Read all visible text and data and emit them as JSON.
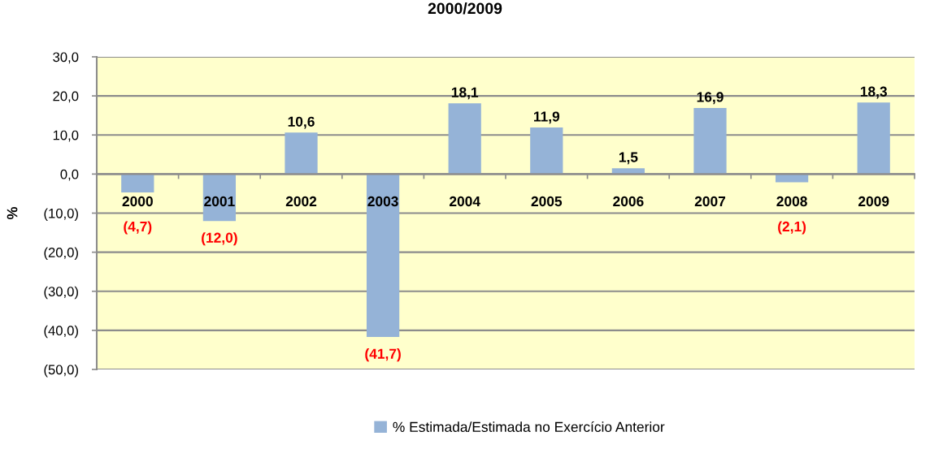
{
  "chart_data": {
    "type": "bar",
    "title": "2000/2009",
    "ylabel": "%",
    "categories": [
      "2000",
      "2001",
      "2002",
      "2003",
      "2004",
      "2005",
      "2006",
      "2007",
      "2008",
      "2009"
    ],
    "series": [
      {
        "name": "% Estimada/Estimada no Exercício Anterior",
        "color": "#95b3d7",
        "values": [
          -4.7,
          -12.0,
          10.6,
          -41.7,
          18.1,
          11.9,
          1.5,
          16.9,
          -2.1,
          18.3
        ],
        "value_labels": [
          "(4,7)",
          "(12,0)",
          "10,6",
          "(41,7)",
          "18,1",
          "11,9",
          "1,5",
          "16,9",
          "(2,1)",
          "18,3"
        ]
      }
    ],
    "ylim": [
      -50,
      30
    ],
    "yticks": [
      {
        "value": -50,
        "label": "(50,0)"
      },
      {
        "value": -40,
        "label": "(40,0)"
      },
      {
        "value": -30,
        "label": "(30,0)"
      },
      {
        "value": -20,
        "label": "(20,0)"
      },
      {
        "value": -10,
        "label": "(10,0)"
      },
      {
        "value": 0,
        "label": "0,0"
      },
      {
        "value": 10,
        "label": "10,0"
      },
      {
        "value": 20,
        "label": "20,0"
      },
      {
        "value": 30,
        "label": "30,0"
      }
    ],
    "grid": "y",
    "legend": "bottom"
  }
}
